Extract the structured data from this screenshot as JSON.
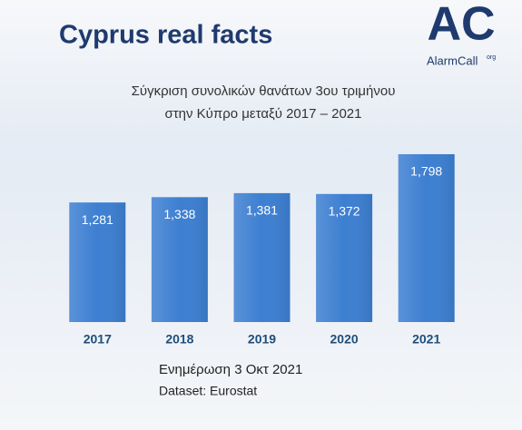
{
  "header": {
    "title": "Cyprus real facts",
    "logo_mark": "AC",
    "logo_name": "AlarmCall",
    "logo_suffix": "org"
  },
  "chart_data": {
    "type": "bar",
    "title": [
      "Σύγκριση συνολικών θανάτων 3ου τριμήνου",
      "στην Κύπρο μεταξύ 2017 – 2021"
    ],
    "categories": [
      "2017",
      "2018",
      "2019",
      "2020",
      "2021"
    ],
    "values": [
      1281,
      1338,
      1381,
      1372,
      1798
    ],
    "value_labels": [
      "1,281",
      "1,338",
      "1,381",
      "1,372",
      "1,798"
    ],
    "color": "#3d7fd1"
  },
  "footer": {
    "update": "Ενημέρωση 3 Οκτ 2021",
    "dataset": "Dataset: Eurostat"
  }
}
